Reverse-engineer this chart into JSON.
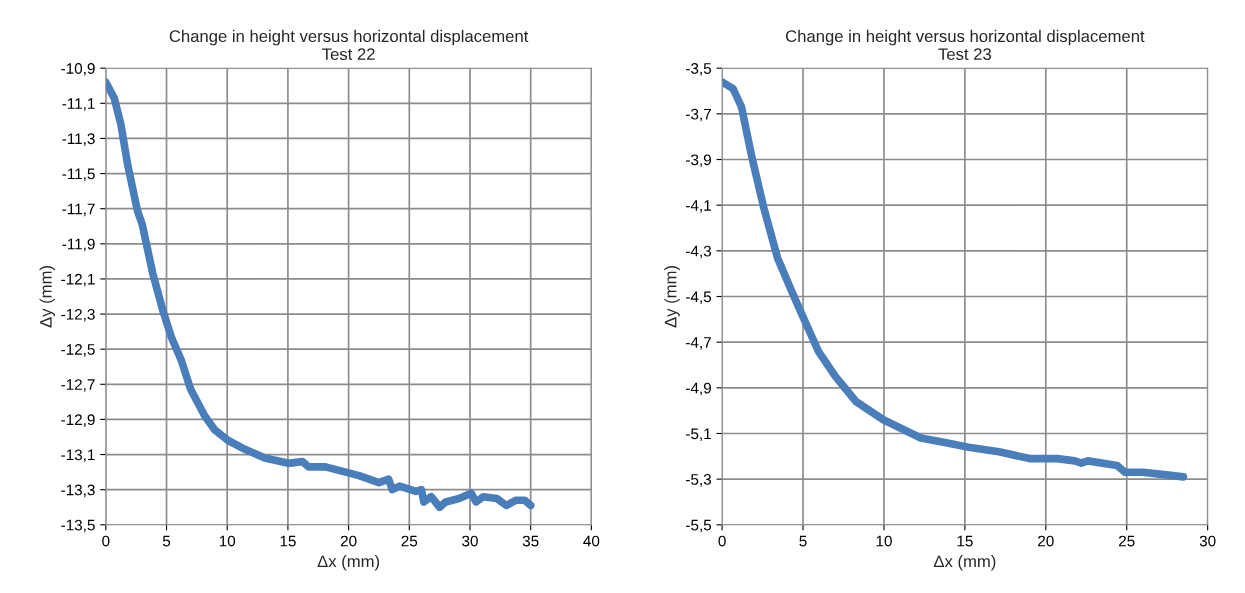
{
  "chart_data": [
    {
      "type": "line",
      "title": "Change in height versus horizontal displacement\nTest 22",
      "xlabel": "Δx (mm)",
      "ylabel": "Δy (mm)",
      "grid": true,
      "line_style": "solid",
      "x": [
        0,
        0.69,
        1.24,
        1.8,
        2.6,
        3.0,
        3.87,
        4.7,
        5.39,
        6.2,
        7.0,
        8.15,
        8.98,
        10.08,
        11.46,
        13.1,
        15.06,
        16.2,
        16.7,
        18.1,
        19.75,
        20.86,
        22.5,
        23.3,
        23.6,
        24.2,
        25.55,
        26.0,
        26.2,
        26.8,
        27.5,
        28.0,
        29.1,
        30.1,
        30.5,
        31.1,
        32.2,
        33.0,
        33.8,
        34.5,
        35.0
      ],
      "series": [
        {
          "color": "#4a7ebb",
          "values": [
            -10.98,
            -11.07,
            -11.22,
            -11.45,
            -11.71,
            -11.79,
            -12.07,
            -12.28,
            -12.43,
            -12.56,
            -12.73,
            -12.88,
            -12.96,
            -13.02,
            -13.07,
            -13.12,
            -13.15,
            -13.14,
            -13.17,
            -13.17,
            -13.2,
            -13.22,
            -13.26,
            -13.24,
            -13.3,
            -13.28,
            -13.31,
            -13.3,
            -13.37,
            -13.34,
            -13.4,
            -13.37,
            -13.35,
            -13.32,
            -13.37,
            -13.34,
            -13.35,
            -13.39,
            -13.36,
            -13.36,
            -13.39
          ]
        }
      ],
      "xlim": [
        0,
        40
      ],
      "xticks": [
        0,
        5,
        10,
        15,
        20,
        25,
        30,
        35,
        40
      ],
      "ylim": [
        -13.5,
        -10.9
      ],
      "yticks": [
        {
          "value": -10.9,
          "label": "-10,9"
        },
        {
          "value": -11.1,
          "label": "-11,1"
        },
        {
          "value": -11.3,
          "label": "-11,3"
        },
        {
          "value": -11.5,
          "label": "-11,5"
        },
        {
          "value": -11.7,
          "label": "-11,7"
        },
        {
          "value": -11.9,
          "label": "-11,9"
        },
        {
          "value": -12.1,
          "label": "-12,1"
        },
        {
          "value": -12.3,
          "label": "-12,3"
        },
        {
          "value": -12.5,
          "label": "-12,5"
        },
        {
          "value": -12.7,
          "label": "-12,7"
        },
        {
          "value": -12.9,
          "label": "-12,9"
        },
        {
          "value": -13.1,
          "label": "-13,1"
        },
        {
          "value": -13.3,
          "label": "-13,3"
        },
        {
          "value": -13.5,
          "label": "-13,5"
        }
      ]
    },
    {
      "type": "line",
      "title": "Change in height versus horizontal displacement\nTest 23",
      "xlabel": "Δx (mm)",
      "ylabel": "Δy (mm)",
      "grid": true,
      "line_style": "solid",
      "x": [
        0,
        0.68,
        1.2,
        1.84,
        2.57,
        3.42,
        4.26,
        5.0,
        5.95,
        7.0,
        8.27,
        9.96,
        12.28,
        13.76,
        15.23,
        17.1,
        19.0,
        20.7,
        21.8,
        22.2,
        22.6,
        24.4,
        24.9,
        26.0,
        27.3,
        28.5
      ],
      "series": [
        {
          "color": "#4a7ebb",
          "values": [
            -3.56,
            -3.59,
            -3.67,
            -3.89,
            -4.11,
            -4.33,
            -4.47,
            -4.59,
            -4.74,
            -4.85,
            -4.96,
            -5.04,
            -5.12,
            -5.14,
            -5.16,
            -5.18,
            -5.21,
            -5.21,
            -5.22,
            -5.23,
            -5.22,
            -5.24,
            -5.27,
            -5.27,
            -5.28,
            -5.29
          ]
        }
      ],
      "xlim": [
        0,
        30
      ],
      "xticks": [
        0,
        5,
        10,
        15,
        20,
        25,
        30
      ],
      "ylim": [
        -5.5,
        -3.5
      ],
      "yticks": [
        {
          "value": -3.5,
          "label": "-3,5"
        },
        {
          "value": -3.7,
          "label": "-3,7"
        },
        {
          "value": -3.9,
          "label": "-3,9"
        },
        {
          "value": -4.1,
          "label": "-4,1"
        },
        {
          "value": -4.3,
          "label": "-4,3"
        },
        {
          "value": -4.5,
          "label": "-4,5"
        },
        {
          "value": -4.7,
          "label": "-4,7"
        },
        {
          "value": -4.9,
          "label": "-4,9"
        },
        {
          "value": -5.1,
          "label": "-5,1"
        },
        {
          "value": -5.3,
          "label": "-5,3"
        },
        {
          "value": -5.5,
          "label": "-5,5"
        }
      ]
    }
  ]
}
